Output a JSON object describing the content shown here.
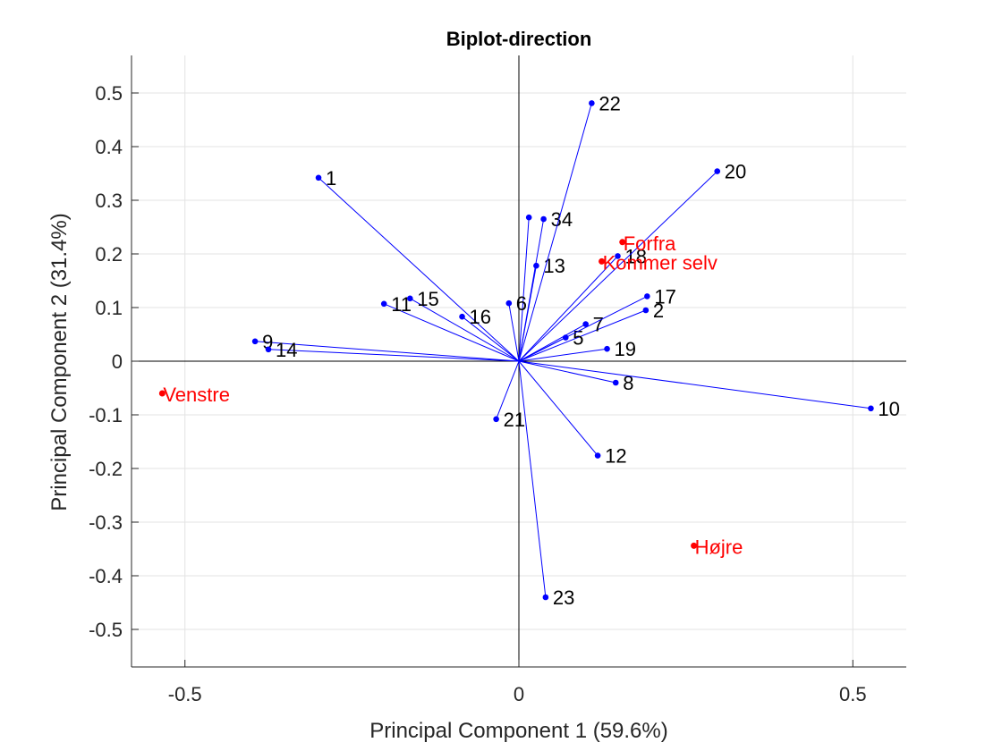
{
  "chart_data": {
    "type": "scatter",
    "title": "Biplot-direction",
    "xlabel": "Principal Component 1 (59.6%)",
    "ylabel": "Principal Component 2 (31.4%)",
    "xlim": [
      -0.58,
      0.58
    ],
    "ylim": [
      -0.57,
      0.57
    ],
    "grid": true,
    "x_ticks": [
      -0.5,
      0,
      0.5
    ],
    "x_tick_labels": [
      "-0.5",
      "0",
      "0.5"
    ],
    "y_ticks": [
      -0.5,
      -0.4,
      -0.3,
      -0.2,
      -0.1,
      0,
      0.1,
      0.2,
      0.3,
      0.4,
      0.5
    ],
    "y_tick_labels": [
      "-0.5",
      "-0.4",
      "-0.3",
      "-0.2",
      "-0.1",
      "0",
      "0.1",
      "0.2",
      "0.3",
      "0.4",
      "0.5"
    ],
    "vector_color": "#0000ff",
    "point_color": "#ff0000",
    "vectors": [
      {
        "label": "1",
        "x": -0.3,
        "y": 0.342
      },
      {
        "label": "2",
        "x": 0.19,
        "y": 0.095
      },
      {
        "label": "34",
        "x": 0.037,
        "y": 0.265
      },
      {
        "label": "",
        "x": 0.015,
        "y": 0.268
      },
      {
        "label": "5",
        "x": 0.07,
        "y": 0.044
      },
      {
        "label": "6",
        "x": -0.015,
        "y": 0.108
      },
      {
        "label": "7",
        "x": 0.1,
        "y": 0.069
      },
      {
        "label": "8",
        "x": 0.145,
        "y": -0.04
      },
      {
        "label": "9",
        "x": -0.395,
        "y": 0.037
      },
      {
        "label": "10",
        "x": 0.527,
        "y": -0.088
      },
      {
        "label": "11",
        "x": -0.202,
        "y": 0.107
      },
      {
        "label": "12",
        "x": 0.118,
        "y": -0.176
      },
      {
        "label": "13",
        "x": 0.026,
        "y": 0.178
      },
      {
        "label": "14",
        "x": -0.375,
        "y": 0.022
      },
      {
        "label": "15",
        "x": -0.163,
        "y": 0.117
      },
      {
        "label": "16",
        "x": -0.085,
        "y": 0.083
      },
      {
        "label": "17",
        "x": 0.192,
        "y": 0.121
      },
      {
        "label": "18",
        "x": 0.148,
        "y": 0.196
      },
      {
        "label": "19",
        "x": 0.132,
        "y": 0.023
      },
      {
        "label": "20",
        "x": 0.297,
        "y": 0.354
      },
      {
        "label": "21",
        "x": -0.034,
        "y": -0.108
      },
      {
        "label": "22",
        "x": 0.109,
        "y": 0.481
      },
      {
        "label": "23",
        "x": 0.04,
        "y": -0.44
      }
    ],
    "observations": [
      {
        "label": "Venstre",
        "x": -0.534,
        "y": -0.06
      },
      {
        "label": "Forfra",
        "x": 0.155,
        "y": 0.222
      },
      {
        "label": "Kommer selv",
        "x": 0.124,
        "y": 0.186
      },
      {
        "label": "Højre",
        "x": 0.262,
        "y": -0.344
      }
    ]
  }
}
